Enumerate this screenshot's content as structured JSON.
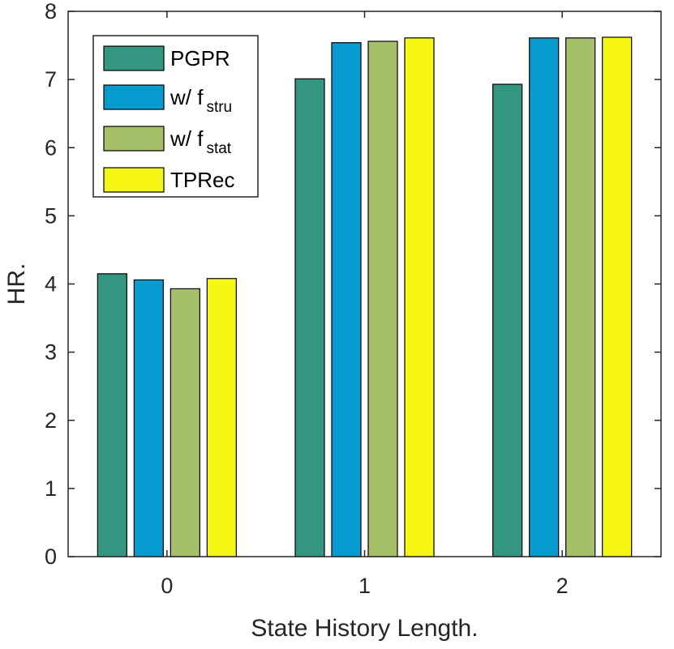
{
  "chart_data": {
    "type": "bar",
    "categories": [
      "0",
      "1",
      "2"
    ],
    "xlabel": "State History Length.",
    "ylabel": "HR.",
    "ylim": [
      0,
      8
    ],
    "yticks": [
      "0",
      "1",
      "2",
      "3",
      "4",
      "5",
      "6",
      "7",
      "8"
    ],
    "grid": false,
    "legend_position": "top-left",
    "series": [
      {
        "name": "PGPR",
        "name_main": "PGPR",
        "name_sub": "",
        "color": "#329680",
        "values": [
          4.15,
          7.01,
          6.93
        ]
      },
      {
        "name": "w/ f stru",
        "name_main": "w/ f",
        "name_sub": "stru",
        "color": "#069ccf",
        "values": [
          4.06,
          7.54,
          7.61
        ]
      },
      {
        "name": "w/ f stat",
        "name_main": "w/ f",
        "name_sub": "stat",
        "color": "#a6c06a",
        "values": [
          3.93,
          7.56,
          7.61
        ]
      },
      {
        "name": "TPRec",
        "name_main": "TPRec",
        "name_sub": "",
        "color": "#f5f712",
        "values": [
          4.08,
          7.61,
          7.62
        ]
      }
    ]
  }
}
